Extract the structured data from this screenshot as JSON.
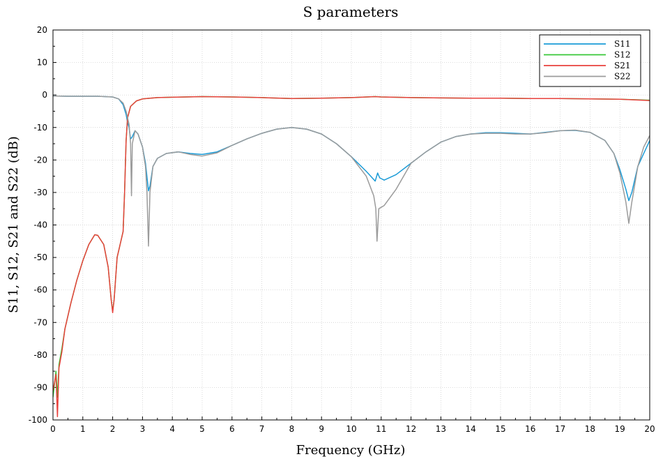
{
  "chart_data": {
    "type": "line",
    "title": "S parameters",
    "xlabel": "Frequency (GHz)",
    "ylabel": "S11, S12, S21 and S22 (dB)",
    "xlim": [
      0,
      20
    ],
    "ylim": [
      -100,
      20
    ],
    "x_ticks": [
      0,
      1,
      2,
      3,
      4,
      5,
      6,
      7,
      8,
      9,
      10,
      11,
      12,
      13,
      14,
      15,
      16,
      17,
      18,
      19,
      20
    ],
    "y_ticks": [
      20,
      10,
      0,
      -10,
      -20,
      -30,
      -40,
      -50,
      -60,
      -70,
      -80,
      -90,
      -100
    ],
    "grid": true,
    "legend_position": "top-right",
    "series": [
      {
        "name": "S11",
        "color": "#1a9bd7",
        "points": [
          [
            0,
            -0.3
          ],
          [
            0.5,
            -0.4
          ],
          [
            1,
            -0.4
          ],
          [
            1.5,
            -0.4
          ],
          [
            2,
            -0.6
          ],
          [
            2.2,
            -1.2
          ],
          [
            2.35,
            -3
          ],
          [
            2.45,
            -6
          ],
          [
            2.5,
            -8.5
          ],
          [
            2.55,
            -10
          ],
          [
            2.6,
            -13.5
          ],
          [
            2.65,
            -13
          ],
          [
            2.75,
            -11
          ],
          [
            2.85,
            -12
          ],
          [
            3,
            -16
          ],
          [
            3.1,
            -21
          ],
          [
            3.2,
            -29.5
          ],
          [
            3.25,
            -28
          ],
          [
            3.35,
            -22
          ],
          [
            3.5,
            -19.5
          ],
          [
            3.8,
            -18
          ],
          [
            4.2,
            -17.5
          ],
          [
            4.6,
            -18
          ],
          [
            5,
            -18.3
          ],
          [
            5.5,
            -17.5
          ],
          [
            6,
            -15.5
          ],
          [
            6.5,
            -13.5
          ],
          [
            7,
            -11.8
          ],
          [
            7.5,
            -10.5
          ],
          [
            8,
            -10
          ],
          [
            8.5,
            -10.5
          ],
          [
            9,
            -12
          ],
          [
            9.5,
            -15
          ],
          [
            10,
            -19
          ],
          [
            10.5,
            -23.5
          ],
          [
            10.8,
            -26.5
          ],
          [
            10.88,
            -24
          ],
          [
            10.95,
            -25.5
          ],
          [
            11.1,
            -26.2
          ],
          [
            11.5,
            -24.5
          ],
          [
            12,
            -21
          ],
          [
            12.5,
            -17.5
          ],
          [
            13,
            -14.5
          ],
          [
            13.5,
            -12.8
          ],
          [
            14,
            -12
          ],
          [
            14.5,
            -11.6
          ],
          [
            15,
            -11.6
          ],
          [
            15.5,
            -11.8
          ],
          [
            16,
            -12
          ],
          [
            16.5,
            -11.5
          ],
          [
            17,
            -11
          ],
          [
            17.5,
            -10.9
          ],
          [
            18,
            -11.5
          ],
          [
            18.5,
            -14
          ],
          [
            18.8,
            -18
          ],
          [
            19,
            -23
          ],
          [
            19.2,
            -29
          ],
          [
            19.3,
            -32.5
          ],
          [
            19.4,
            -30
          ],
          [
            19.6,
            -22
          ],
          [
            19.8,
            -18
          ],
          [
            20,
            -14
          ]
        ]
      },
      {
        "name": "S12",
        "color": "#37c837",
        "points": [
          [
            0,
            -93
          ],
          [
            0.1,
            -85
          ],
          [
            0.15,
            -93
          ],
          [
            0.2,
            -83
          ],
          [
            0.3,
            -78
          ],
          [
            0.4,
            -72
          ],
          [
            0.6,
            -64
          ],
          [
            0.8,
            -57
          ],
          [
            1,
            -51
          ],
          [
            1.2,
            -46
          ],
          [
            1.4,
            -43
          ],
          [
            1.5,
            -43.2
          ],
          [
            1.7,
            -46
          ],
          [
            1.85,
            -53
          ],
          [
            1.95,
            -63
          ],
          [
            2,
            -66.5
          ],
          [
            2.05,
            -63
          ],
          [
            2.15,
            -50
          ],
          [
            2.25,
            -46
          ],
          [
            2.35,
            -42
          ],
          [
            2.4,
            -30
          ],
          [
            2.45,
            -14
          ],
          [
            2.5,
            -7
          ],
          [
            2.6,
            -3.5
          ],
          [
            2.8,
            -1.8
          ],
          [
            3,
            -1.2
          ],
          [
            3.5,
            -0.8
          ],
          [
            4,
            -0.7
          ],
          [
            5,
            -0.5
          ],
          [
            6,
            -0.6
          ],
          [
            7,
            -0.8
          ],
          [
            8,
            -1.1
          ],
          [
            9,
            -1.0
          ],
          [
            10,
            -0.8
          ],
          [
            10.8,
            -0.5
          ],
          [
            11,
            -0.6
          ],
          [
            12,
            -0.8
          ],
          [
            13,
            -0.9
          ],
          [
            14,
            -1.0
          ],
          [
            15,
            -1.0
          ],
          [
            16,
            -1.1
          ],
          [
            17,
            -1.1
          ],
          [
            18,
            -1.2
          ],
          [
            19,
            -1.3
          ],
          [
            20,
            -1.6
          ]
        ]
      },
      {
        "name": "S21",
        "color": "#e8413c",
        "points": [
          [
            0,
            -91
          ],
          [
            0.1,
            -86
          ],
          [
            0.15,
            -99
          ],
          [
            0.2,
            -84
          ],
          [
            0.3,
            -79
          ],
          [
            0.4,
            -72
          ],
          [
            0.6,
            -64
          ],
          [
            0.8,
            -57
          ],
          [
            1,
            -51
          ],
          [
            1.2,
            -46
          ],
          [
            1.4,
            -43
          ],
          [
            1.5,
            -43.2
          ],
          [
            1.7,
            -46
          ],
          [
            1.85,
            -53
          ],
          [
            1.95,
            -63
          ],
          [
            2,
            -67
          ],
          [
            2.05,
            -63
          ],
          [
            2.15,
            -50
          ],
          [
            2.25,
            -46
          ],
          [
            2.35,
            -42
          ],
          [
            2.4,
            -30
          ],
          [
            2.45,
            -14
          ],
          [
            2.5,
            -7
          ],
          [
            2.6,
            -3.5
          ],
          [
            2.8,
            -1.8
          ],
          [
            3,
            -1.2
          ],
          [
            3.5,
            -0.8
          ],
          [
            4,
            -0.7
          ],
          [
            5,
            -0.5
          ],
          [
            6,
            -0.6
          ],
          [
            7,
            -0.8
          ],
          [
            8,
            -1.1
          ],
          [
            9,
            -1.0
          ],
          [
            10,
            -0.8
          ],
          [
            10.8,
            -0.5
          ],
          [
            11,
            -0.6
          ],
          [
            12,
            -0.8
          ],
          [
            13,
            -0.9
          ],
          [
            14,
            -1.0
          ],
          [
            15,
            -1.0
          ],
          [
            16,
            -1.1
          ],
          [
            17,
            -1.1
          ],
          [
            18,
            -1.2
          ],
          [
            19,
            -1.3
          ],
          [
            20,
            -1.7
          ]
        ]
      },
      {
        "name": "S22",
        "color": "#9b9b9b",
        "points": [
          [
            0,
            -0.3
          ],
          [
            0.5,
            -0.4
          ],
          [
            1,
            -0.4
          ],
          [
            1.5,
            -0.4
          ],
          [
            2,
            -0.6
          ],
          [
            2.2,
            -1.2
          ],
          [
            2.35,
            -2.5
          ],
          [
            2.45,
            -5
          ],
          [
            2.5,
            -7
          ],
          [
            2.55,
            -9
          ],
          [
            2.6,
            -15
          ],
          [
            2.63,
            -31
          ],
          [
            2.66,
            -15
          ],
          [
            2.75,
            -11
          ],
          [
            2.85,
            -12
          ],
          [
            3,
            -16
          ],
          [
            3.1,
            -22
          ],
          [
            3.15,
            -30
          ],
          [
            3.2,
            -46.5
          ],
          [
            3.25,
            -30
          ],
          [
            3.35,
            -22
          ],
          [
            3.5,
            -19.5
          ],
          [
            3.8,
            -18
          ],
          [
            4.2,
            -17.5
          ],
          [
            4.6,
            -18.3
          ],
          [
            5,
            -18.8
          ],
          [
            5.5,
            -17.8
          ],
          [
            6,
            -15.5
          ],
          [
            6.5,
            -13.5
          ],
          [
            7,
            -11.8
          ],
          [
            7.5,
            -10.5
          ],
          [
            8,
            -10
          ],
          [
            8.5,
            -10.5
          ],
          [
            9,
            -12
          ],
          [
            9.5,
            -15
          ],
          [
            10,
            -19
          ],
          [
            10.5,
            -25
          ],
          [
            10.75,
            -31
          ],
          [
            10.82,
            -35
          ],
          [
            10.86,
            -45
          ],
          [
            10.92,
            -35
          ],
          [
            11.1,
            -34
          ],
          [
            11.5,
            -29
          ],
          [
            12,
            -21
          ],
          [
            12.5,
            -17.5
          ],
          [
            13,
            -14.5
          ],
          [
            13.5,
            -12.8
          ],
          [
            14,
            -12
          ],
          [
            14.5,
            -11.8
          ],
          [
            15,
            -11.8
          ],
          [
            15.5,
            -12
          ],
          [
            16,
            -12
          ],
          [
            16.5,
            -11.6
          ],
          [
            17,
            -11
          ],
          [
            17.5,
            -10.8
          ],
          [
            18,
            -11.5
          ],
          [
            18.5,
            -14
          ],
          [
            18.8,
            -18
          ],
          [
            19,
            -24
          ],
          [
            19.2,
            -33
          ],
          [
            19.3,
            -39.5
          ],
          [
            19.4,
            -33
          ],
          [
            19.6,
            -22
          ],
          [
            19.8,
            -16
          ],
          [
            20,
            -12.5
          ]
        ]
      }
    ]
  }
}
